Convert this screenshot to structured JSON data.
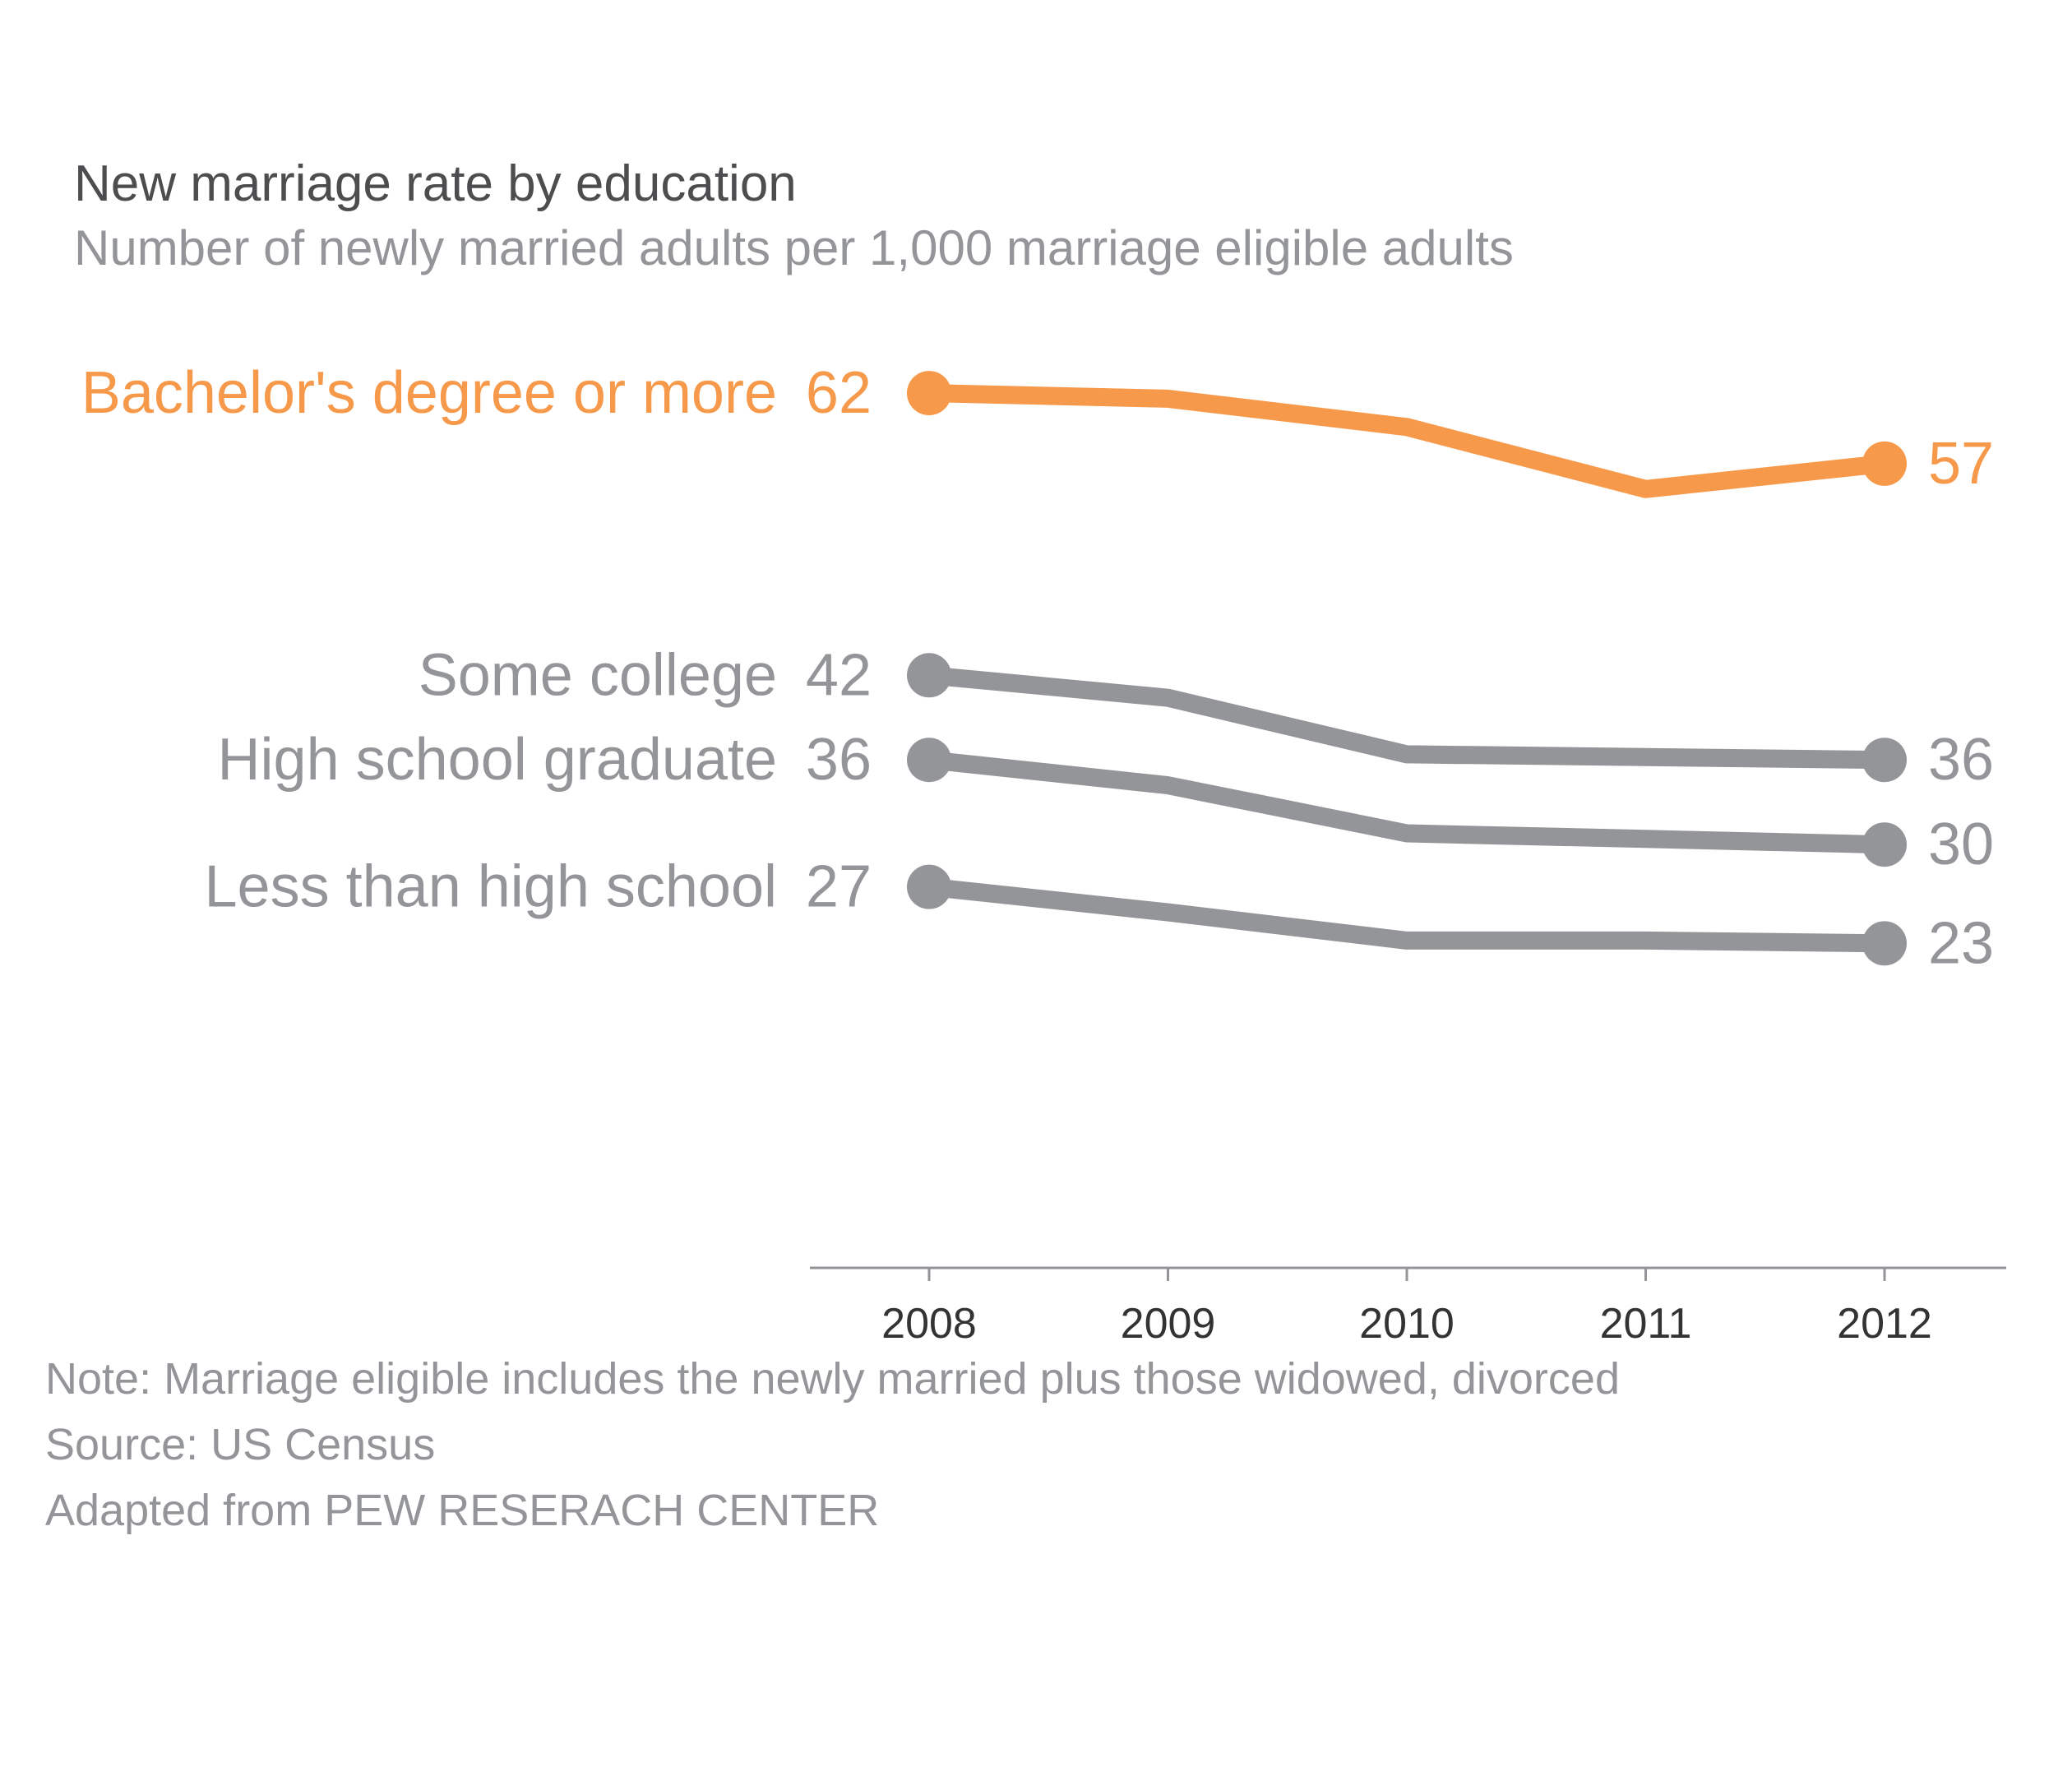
{
  "colors": {
    "highlight": "#f7994a",
    "muted": "#939598",
    "title": "#4d4d4f",
    "subtitle": "#939598",
    "axis": "#939598",
    "tick_label": "#333333",
    "note": "#939598",
    "background": "#ffffff"
  },
  "chart_data": {
    "type": "line",
    "title": "New marriage rate by education",
    "subtitle": "Number of newly married adults per 1,000 marriage eligible adults",
    "x": [
      2008,
      2009,
      2010,
      2011,
      2012
    ],
    "x_tick_labels": [
      "2008",
      "2009",
      "2010",
      "2011",
      "2012"
    ],
    "ylim": [
      0,
      70
    ],
    "grid": false,
    "y_axis_visible": false,
    "legend": "inline labels at left of each line",
    "series": [
      {
        "name": "Bachelor's degree or more",
        "values": [
          62,
          61.6,
          59.6,
          55.2,
          57
        ],
        "start_label": "62",
        "end_label": "57",
        "color": "#f7994a"
      },
      {
        "name": "Some college",
        "values": [
          42,
          40.4,
          36.4,
          36.2,
          36
        ],
        "start_label": "42",
        "end_label": "36",
        "color": "#939598"
      },
      {
        "name": "High school graduate",
        "values": [
          36,
          34.2,
          30.8,
          30.4,
          30
        ],
        "start_label": "36",
        "end_label": "30",
        "color": "#939598"
      },
      {
        "name": "Less than high school",
        "values": [
          27,
          25.2,
          23.2,
          23.2,
          23
        ],
        "start_label": "27",
        "end_label": "23",
        "color": "#939598"
      }
    ]
  },
  "notes": [
    "Note: Marriage eligible includes the newly married plus those widowed, divorced",
    "Source: US Census",
    "Adapted from PEW RESERACH CENTER"
  ]
}
